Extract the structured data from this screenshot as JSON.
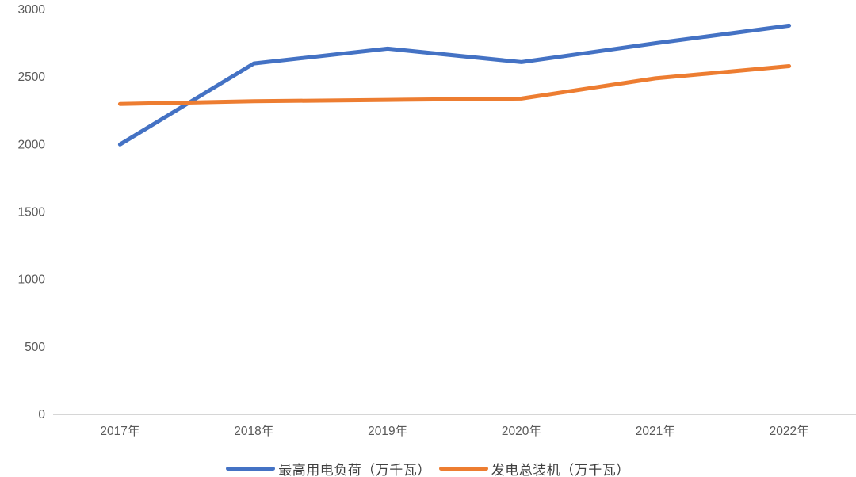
{
  "chart_data": {
    "type": "line",
    "title": "",
    "xlabel": "",
    "ylabel": "",
    "categories": [
      "2017年",
      "2018年",
      "2019年",
      "2020年",
      "2021年",
      "2022年"
    ],
    "series": [
      {
        "name": "最高用电负荷（万千瓦）",
        "color": "#4472C4",
        "values": [
          2000,
          2600,
          2710,
          2610,
          2750,
          2880
        ]
      },
      {
        "name": "发电总装机（万千瓦）",
        "color": "#ED7D31",
        "values": [
          2300,
          2320,
          2330,
          2340,
          2490,
          2580
        ]
      }
    ],
    "yticks": [
      0,
      500,
      1000,
      1500,
      2000,
      2500,
      3000
    ],
    "ylim": [
      0,
      3000
    ],
    "grid": false,
    "legend_position": "bottom",
    "axis_color": "#c9c9c9",
    "tick_label_color": "#595959",
    "background_color": "#ffffff"
  }
}
